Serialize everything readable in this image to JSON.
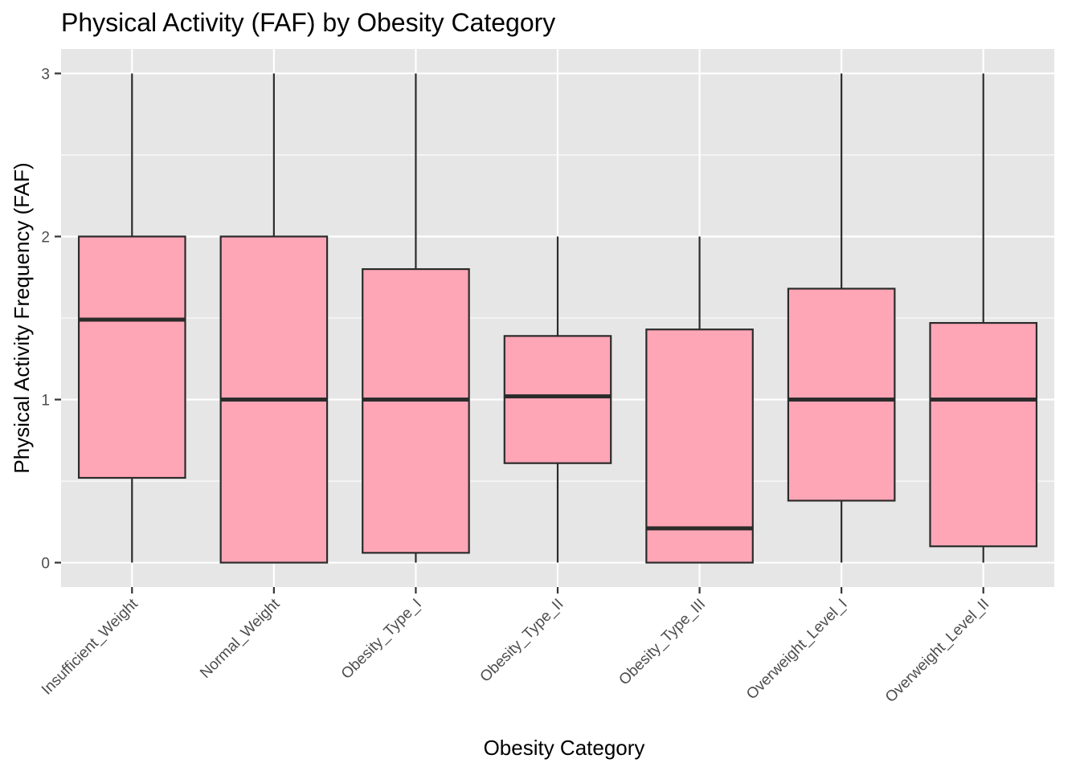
{
  "chart_data": {
    "type": "boxplot",
    "title": "Physical Activity (FAF) by Obesity Category",
    "xlabel": "Obesity Category",
    "ylabel": "Physical Activity Frequency (FAF)",
    "ylim": [
      -0.15,
      3.15
    ],
    "yticks": [
      0,
      1,
      2,
      3
    ],
    "categories": [
      "Insufficient_Weight",
      "Normal_Weight",
      "Obesity_Type_I",
      "Obesity_Type_II",
      "Obesity_Type_III",
      "Overweight_Level_I",
      "Overweight_Level_II"
    ],
    "boxes": [
      {
        "min": 0,
        "q1": 0.52,
        "median": 1.49,
        "q3": 2.0,
        "max": 3.0
      },
      {
        "min": 0,
        "q1": 0.0,
        "median": 1.0,
        "q3": 2.0,
        "max": 3.0
      },
      {
        "min": 0,
        "q1": 0.06,
        "median": 1.0,
        "q3": 1.8,
        "max": 3.0
      },
      {
        "min": 0,
        "q1": 0.61,
        "median": 1.02,
        "q3": 1.39,
        "max": 2.0
      },
      {
        "min": 0,
        "q1": 0.0,
        "median": 0.21,
        "q3": 1.43,
        "max": 2.0
      },
      {
        "min": 0,
        "q1": 0.38,
        "median": 1.0,
        "q3": 1.68,
        "max": 3.0
      },
      {
        "min": 0,
        "q1": 0.1,
        "median": 1.0,
        "q3": 1.47,
        "max": 3.0
      }
    ],
    "grid": true,
    "legend": "none",
    "colors": {
      "box_fill": "#FFA6B6",
      "box_stroke": "#2b2b2b",
      "panel": "#E6E6E6",
      "grid": "#FFFFFF"
    }
  }
}
